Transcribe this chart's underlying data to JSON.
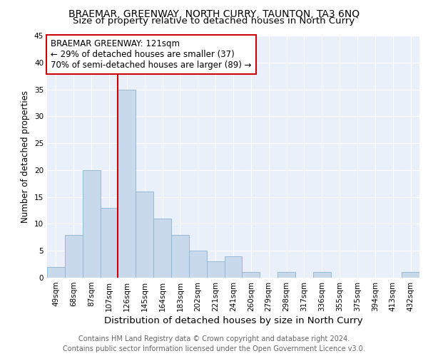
{
  "title": "BRAEMAR, GREENWAY, NORTH CURRY, TAUNTON, TA3 6NQ",
  "subtitle": "Size of property relative to detached houses in North Curry",
  "xlabel": "Distribution of detached houses by size in North Curry",
  "ylabel": "Number of detached properties",
  "categories": [
    "49sqm",
    "68sqm",
    "87sqm",
    "107sqm",
    "126sqm",
    "145sqm",
    "164sqm",
    "183sqm",
    "202sqm",
    "221sqm",
    "241sqm",
    "260sqm",
    "279sqm",
    "298sqm",
    "317sqm",
    "336sqm",
    "355sqm",
    "375sqm",
    "394sqm",
    "413sqm",
    "432sqm"
  ],
  "values": [
    2,
    8,
    20,
    13,
    35,
    16,
    11,
    8,
    5,
    3,
    4,
    1,
    0,
    1,
    0,
    1,
    0,
    0,
    0,
    0,
    1
  ],
  "bar_color": "#c9d9ec",
  "bar_edgecolor": "#8ab4d4",
  "background_color": "#eaf0f9",
  "vline_x_index": 4,
  "vline_color": "#cc0000",
  "annotation_line1": "BRAEMAR GREENWAY: 121sqm",
  "annotation_line2": "← 29% of detached houses are smaller (37)",
  "annotation_line3": "70% of semi-detached houses are larger (89) →",
  "annotation_box_edgecolor": "#cc0000",
  "footer_line1": "Contains HM Land Registry data © Crown copyright and database right 2024.",
  "footer_line2": "Contains public sector information licensed under the Open Government Licence v3.0.",
  "ylim": [
    0,
    45
  ],
  "yticks": [
    0,
    5,
    10,
    15,
    20,
    25,
    30,
    35,
    40,
    45
  ],
  "title_fontsize": 10,
  "subtitle_fontsize": 9.5,
  "xlabel_fontsize": 9.5,
  "ylabel_fontsize": 8.5,
  "tick_fontsize": 7.5,
  "annotation_fontsize": 8.5,
  "footer_fontsize": 7
}
